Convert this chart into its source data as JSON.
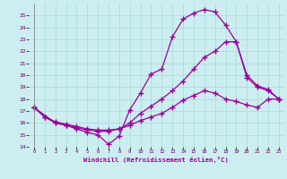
{
  "xlabel": "Windchill (Refroidissement éolien,°C)",
  "bg_color": "#cceef0",
  "line_color": "#990099",
  "grid_color": "#aad8dc",
  "xlim": [
    -0.5,
    23.5
  ],
  "ylim": [
    14,
    26
  ],
  "xticks": [
    0,
    1,
    2,
    3,
    4,
    5,
    6,
    7,
    8,
    9,
    10,
    11,
    12,
    13,
    14,
    15,
    16,
    17,
    18,
    19,
    20,
    21,
    22,
    23
  ],
  "yticks": [
    14,
    15,
    16,
    17,
    18,
    19,
    20,
    21,
    22,
    23,
    24,
    25
  ],
  "series": [
    {
      "x": [
        0,
        1,
        2,
        3,
        4,
        5,
        6,
        7,
        8,
        9,
        10,
        11,
        12,
        13,
        14,
        15,
        16,
        17,
        18,
        19,
        20,
        21,
        22,
        23
      ],
      "y": [
        17.3,
        16.5,
        16.0,
        15.8,
        15.5,
        15.2,
        15.0,
        14.2,
        14.9,
        17.1,
        18.5,
        20.1,
        20.5,
        23.2,
        24.7,
        25.2,
        25.5,
        25.3,
        24.2,
        22.8,
        20.0,
        19.1,
        18.8,
        18.0
      ]
    },
    {
      "x": [
        0,
        1,
        2,
        3,
        4,
        5,
        6,
        7,
        8,
        9,
        10,
        11,
        12,
        13,
        14,
        15,
        16,
        17,
        18,
        19,
        20,
        21,
        22,
        23
      ],
      "y": [
        17.3,
        16.5,
        16.1,
        15.9,
        15.7,
        15.5,
        15.4,
        15.4,
        15.5,
        15.8,
        16.2,
        16.5,
        16.8,
        17.3,
        17.9,
        18.3,
        18.7,
        18.5,
        18.0,
        17.8,
        17.5,
        17.3,
        18.0,
        18.0
      ]
    },
    {
      "x": [
        0,
        2,
        3,
        4,
        5,
        6,
        7,
        8,
        9,
        10,
        11,
        12,
        13,
        14,
        15,
        16,
        17,
        18,
        19,
        20,
        21,
        22,
        23
      ],
      "y": [
        17.3,
        16.0,
        15.8,
        15.6,
        15.4,
        15.3,
        15.3,
        15.5,
        16.0,
        16.8,
        17.4,
        18.0,
        18.7,
        19.5,
        20.5,
        21.5,
        22.0,
        22.8,
        22.8,
        19.8,
        19.0,
        18.7,
        18.0
      ]
    }
  ]
}
